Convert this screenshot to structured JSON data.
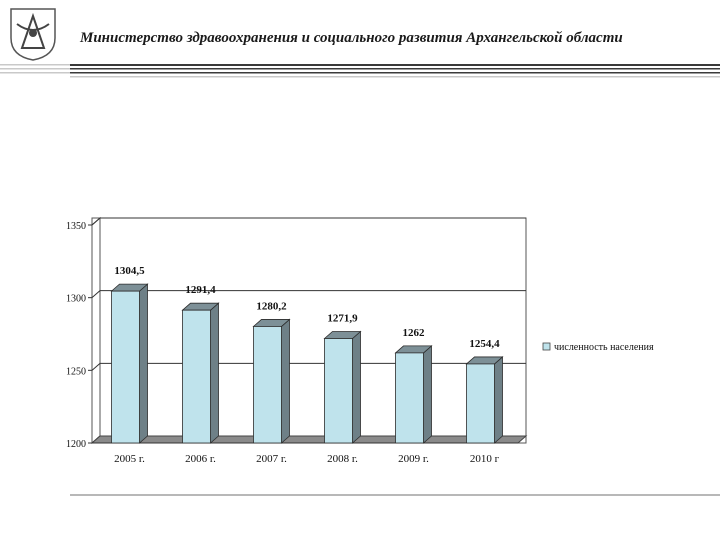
{
  "header": {
    "title": "Министерство здравоохранения и социального развития Архангельской области"
  },
  "colors": {
    "bar_front": "#bfe3ec",
    "bar_side": "#6e8087",
    "bar_top": "#7d9097",
    "bar_stroke": "#2c2c2c",
    "floor": "#8a8a8a",
    "header_stripe_dark": "#3a3a3a",
    "header_stripe_light": "#c9c9c9"
  },
  "chart_data": {
    "type": "bar",
    "style": "3d-column",
    "categories": [
      "2005 г.",
      "2006 г.",
      "2007 г.",
      "2008 г.",
      "2009 г.",
      "2010 г"
    ],
    "series": [
      {
        "name": "численность населения",
        "values": [
          1304.5,
          1291.4,
          1280.2,
          1271.9,
          1262,
          1254.4
        ]
      }
    ],
    "data_labels": [
      "1304,5",
      "1291,4",
      "1280,2",
      "1271,9",
      "1262",
      "1254,4"
    ],
    "ylim": [
      1200,
      1350
    ],
    "yticks": [
      1200,
      1250,
      1300,
      1350
    ],
    "grid": true,
    "legend_position": "right"
  }
}
